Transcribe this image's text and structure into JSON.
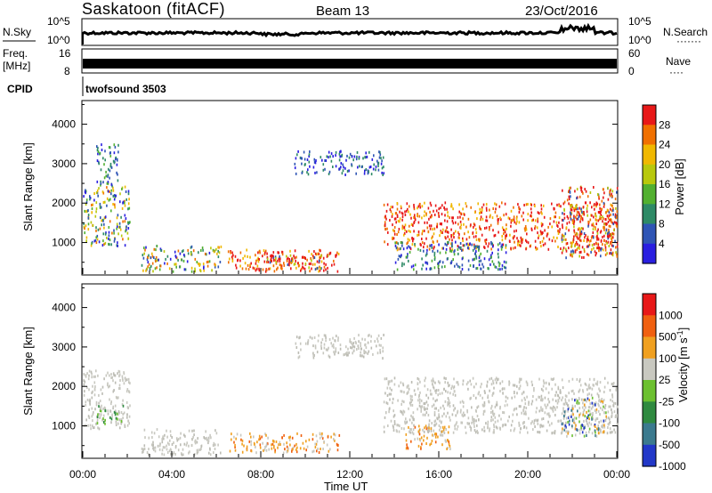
{
  "header": {
    "station": "Saskatoon (fitACF)",
    "beam": "Beam 13",
    "date": "23/Oct/2016"
  },
  "top_panels": {
    "nsky_label": "N.Sky",
    "nsky_ticks": [
      "10^5",
      "10^0"
    ],
    "nsearch_label": "N.Search",
    "nsearch_ticks": [
      "10^5",
      "10^0"
    ],
    "freq_label_1": "Freq.",
    "freq_label_2": "[MHz]",
    "freq_ticks": [
      "16",
      "8"
    ],
    "nave_label": "Nave",
    "nave_ticks": [
      "60",
      "0"
    ],
    "cpid_label": "CPID",
    "cpid_value": "twofsound 3503"
  },
  "chart_data": [
    {
      "type": "heatmap",
      "title": "",
      "ylabel": "Slant Range [km]",
      "xlabel": "",
      "x_tick_labels": [
        "00:00",
        "04:00",
        "08:00",
        "12:00",
        "16:00",
        "20:00",
        "00:00"
      ],
      "ylim": [
        200,
        4600
      ],
      "y_ticks": [
        1000,
        2000,
        3000,
        4000
      ],
      "colorbar": {
        "label": "Power [dB]",
        "ticks": [
          "4",
          "8",
          "12",
          "16",
          "20",
          "24",
          "28"
        ],
        "colors": [
          "#2a1fe0",
          "#2f55b5",
          "#2e8a66",
          "#52b030",
          "#b8c80c",
          "#f0b800",
          "#f07000",
          "#e81818"
        ]
      },
      "scatter_regions": [
        {
          "t0": 0.0,
          "t1": 2.1,
          "r0": 900,
          "r1": 2400,
          "level": "mixed-high"
        },
        {
          "t0": 0.6,
          "t1": 1.6,
          "r0": 2400,
          "r1": 3500,
          "level": "mixed"
        },
        {
          "t0": 2.6,
          "t1": 6.2,
          "r0": 250,
          "r1": 900,
          "level": "mixed-high"
        },
        {
          "t0": 6.5,
          "t1": 11.5,
          "r0": 250,
          "r1": 800,
          "level": "high"
        },
        {
          "t0": 8.2,
          "t1": 11.0,
          "r0": 300,
          "r1": 700,
          "level": "very-high"
        },
        {
          "t0": 9.5,
          "t1": 13.5,
          "r0": 2700,
          "r1": 3300,
          "level": "low"
        },
        {
          "t0": 13.5,
          "t1": 24.0,
          "r0": 800,
          "r1": 2000,
          "level": "high"
        },
        {
          "t0": 14.0,
          "t1": 19.0,
          "r0": 300,
          "r1": 1000,
          "level": "mixed"
        },
        {
          "t0": 21.5,
          "t1": 24.0,
          "r0": 600,
          "r1": 2400,
          "level": "very-high"
        }
      ]
    },
    {
      "type": "heatmap",
      "title": "",
      "ylabel": "Slant Range [km]",
      "xlabel": "Time UT",
      "x_tick_labels": [
        "00:00",
        "04:00",
        "08:00",
        "12:00",
        "16:00",
        "20:00",
        "00:00"
      ],
      "ylim": [
        200,
        4600
      ],
      "y_ticks": [
        1000,
        2000,
        3000,
        4000
      ],
      "colorbar": {
        "label": "Velocity [m s^-1]",
        "ticks": [
          "1000",
          "500",
          "100",
          "25",
          "-25",
          "-100",
          "-500",
          "-1000"
        ],
        "colors": [
          "#2238c8",
          "#3b7a8e",
          "#2f8a40",
          "#6cc030",
          "#c8c8c0",
          "#f0a020",
          "#f06010",
          "#e81818"
        ]
      },
      "scatter_regions": [
        {
          "t0": 0.0,
          "t1": 2.1,
          "r0": 900,
          "r1": 2400,
          "level": "gray"
        },
        {
          "t0": 0.6,
          "t1": 1.8,
          "r0": 1000,
          "r1": 1500,
          "level": "green"
        },
        {
          "t0": 2.6,
          "t1": 6.2,
          "r0": 250,
          "r1": 900,
          "level": "gray"
        },
        {
          "t0": 6.5,
          "t1": 11.5,
          "r0": 300,
          "r1": 800,
          "level": "orange"
        },
        {
          "t0": 9.5,
          "t1": 13.5,
          "r0": 2700,
          "r1": 3300,
          "level": "gray"
        },
        {
          "t0": 13.5,
          "t1": 24.0,
          "r0": 800,
          "r1": 2200,
          "level": "gray"
        },
        {
          "t0": 14.5,
          "t1": 16.5,
          "r0": 400,
          "r1": 1000,
          "level": "orange"
        },
        {
          "t0": 21.5,
          "t1": 23.5,
          "r0": 700,
          "r1": 1700,
          "level": "blue"
        }
      ]
    }
  ]
}
